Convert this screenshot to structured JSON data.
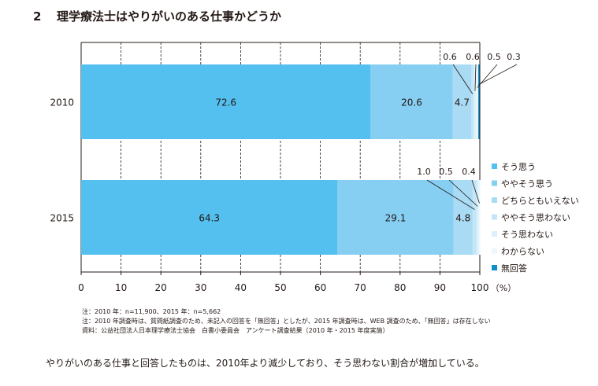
{
  "heading": {
    "number": "2",
    "text": "理学療法士はやりがいのある仕事かどうか"
  },
  "chart_data": {
    "type": "bar",
    "orientation": "horizontal",
    "stacked": true,
    "categories": [
      "2010",
      "2015"
    ],
    "series": [
      {
        "name": "そう思う",
        "color": "#53c0ef",
        "values": [
          72.6,
          64.3
        ]
      },
      {
        "name": "ややそう思う",
        "color": "#86cff2",
        "values": [
          20.6,
          29.1
        ]
      },
      {
        "name": "どちらともいえない",
        "color": "#a9dbf5",
        "values": [
          4.7,
          4.8
        ]
      },
      {
        "name": "ややそう思わない",
        "color": "#c4e6f8",
        "values": [
          0.6,
          1.0
        ]
      },
      {
        "name": "そう思わない",
        "color": "#dbf0fb",
        "values": [
          0.6,
          0.5
        ]
      },
      {
        "name": "わからない",
        "color": "#edf7fd",
        "values": [
          0.5,
          0.4
        ]
      },
      {
        "name": "無回答",
        "color": "#0f8fc9",
        "values": [
          0.3,
          0
        ]
      }
    ],
    "xlim": [
      0,
      100
    ],
    "xticks": [
      "0",
      "10",
      "20",
      "30",
      "40",
      "50",
      "60",
      "70",
      "80",
      "90",
      "100"
    ],
    "xunit": "（%）",
    "grid": "vertical dashed",
    "legend_position": "right",
    "bar_labels": [
      [
        "72.6",
        "20.6",
        "4.7"
      ],
      [
        "64.3",
        "29.1",
        "4.8"
      ]
    ],
    "callouts": [
      [
        "0.6",
        "0.6",
        "0.5",
        "0.3"
      ],
      [
        "1.0",
        "0.5",
        "0.4"
      ]
    ]
  },
  "notes": [
    "注：2010 年：n=11,900、2015 年：n=5,662",
    "注：2010 年調査時は、質問紙調査のため、未記入の回答を「無回答」としたが、2015 年調査時は、WEB 調査のため、「無回答」は存在しない",
    "資料：公益社団法人日本理学療法士協会　白書小委員会　アンケート調査結果（2010 年・2015 年度実施）"
  ],
  "caption": "やりがいのある仕事と回答したものは、2010年より減少しており、そう思わない割合が増加している。"
}
